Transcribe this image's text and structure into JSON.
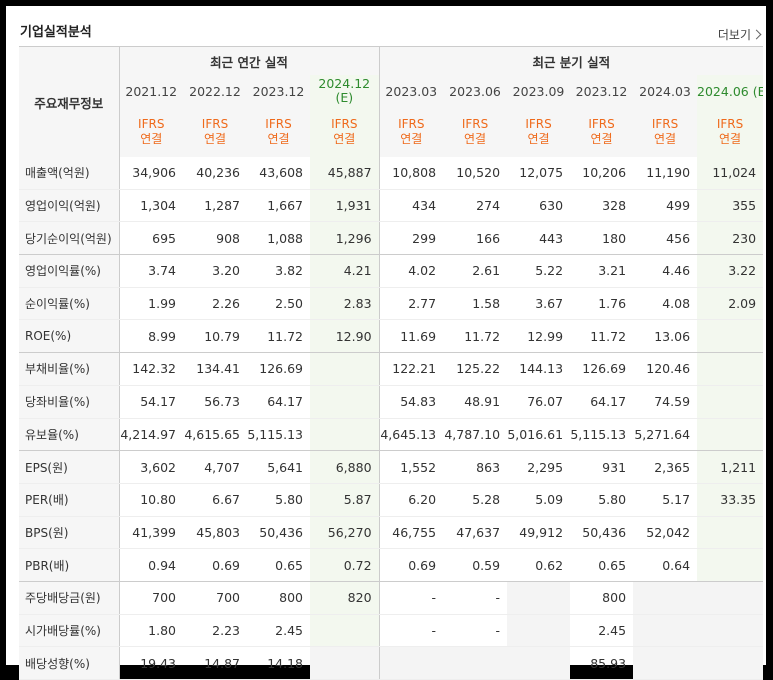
{
  "title": "기업실적분석",
  "more_label": "더보기",
  "header": {
    "row_label": "주요재무정보",
    "annual_group": "최근 연간 실적",
    "quarter_group": "최근 분기 실적",
    "annual_periods": [
      "2021.12",
      "2022.12",
      "2023.12",
      "2024.12"
    ],
    "quarter_periods": [
      "2023.03",
      "2023.06",
      "2023.09",
      "2023.12",
      "2024.03",
      "2024.06"
    ],
    "estimate_mark": "(E)",
    "ifrs_top": "IFRS",
    "ifrs_bottom": "연결"
  },
  "rows": [
    {
      "label": "매출액(억원)",
      "values": [
        "34,906",
        "40,236",
        "43,608",
        "45,887",
        "10,808",
        "10,520",
        "12,075",
        "10,206",
        "11,190",
        "11,024"
      ]
    },
    {
      "label": "영업이익(억원)",
      "values": [
        "1,304",
        "1,287",
        "1,667",
        "1,931",
        "434",
        "274",
        "630",
        "328",
        "499",
        "355"
      ]
    },
    {
      "label": "당기순이익(억원)",
      "values": [
        "695",
        "908",
        "1,088",
        "1,296",
        "299",
        "166",
        "443",
        "180",
        "456",
        "230"
      ]
    },
    {
      "label": "영업이익률(%)",
      "values": [
        "3.74",
        "3.20",
        "3.82",
        "4.21",
        "4.02",
        "2.61",
        "5.22",
        "3.21",
        "4.46",
        "3.22"
      ]
    },
    {
      "label": "순이익률(%)",
      "values": [
        "1.99",
        "2.26",
        "2.50",
        "2.83",
        "2.77",
        "1.58",
        "3.67",
        "1.76",
        "4.08",
        "2.09"
      ]
    },
    {
      "label": "ROE(%)",
      "values": [
        "8.99",
        "10.79",
        "11.72",
        "12.90",
        "11.69",
        "11.72",
        "12.99",
        "11.72",
        "13.06",
        ""
      ]
    },
    {
      "label": "부채비율(%)",
      "values": [
        "142.32",
        "134.41",
        "126.69",
        "",
        "122.21",
        "125.22",
        "144.13",
        "126.69",
        "120.46",
        ""
      ]
    },
    {
      "label": "당좌비율(%)",
      "values": [
        "54.17",
        "56.73",
        "64.17",
        "",
        "54.83",
        "48.91",
        "76.07",
        "64.17",
        "74.59",
        ""
      ]
    },
    {
      "label": "유보율(%)",
      "values": [
        "4,214.97",
        "4,615.65",
        "5,115.13",
        "",
        "4,645.13",
        "4,787.10",
        "5,016.61",
        "5,115.13",
        "5,271.64",
        ""
      ]
    },
    {
      "label": "EPS(원)",
      "values": [
        "3,602",
        "4,707",
        "5,641",
        "6,880",
        "1,552",
        "863",
        "2,295",
        "931",
        "2,365",
        "1,211"
      ]
    },
    {
      "label": "PER(배)",
      "values": [
        "10.80",
        "6.67",
        "5.80",
        "5.87",
        "6.20",
        "5.28",
        "5.09",
        "5.80",
        "5.17",
        "33.35"
      ]
    },
    {
      "label": "BPS(원)",
      "values": [
        "41,399",
        "45,803",
        "50,436",
        "56,270",
        "46,755",
        "47,637",
        "49,912",
        "50,436",
        "52,042",
        ""
      ]
    },
    {
      "label": "PBR(배)",
      "values": [
        "0.94",
        "0.69",
        "0.65",
        "0.72",
        "0.69",
        "0.59",
        "0.62",
        "0.65",
        "0.64",
        ""
      ]
    },
    {
      "label": "주당배당금(원)",
      "values": [
        "700",
        "700",
        "800",
        "820",
        "-",
        "-",
        "",
        "800",
        "",
        ""
      ]
    },
    {
      "label": "시가배당률(%)",
      "values": [
        "1.80",
        "2.23",
        "2.45",
        "",
        "-",
        "-",
        "",
        "2.45",
        "",
        ""
      ]
    },
    {
      "label": "배당성향(%)",
      "values": [
        "19.43",
        "14.87",
        "14.18",
        "",
        "",
        "",
        "",
        "85.93",
        "",
        ""
      ]
    }
  ]
}
